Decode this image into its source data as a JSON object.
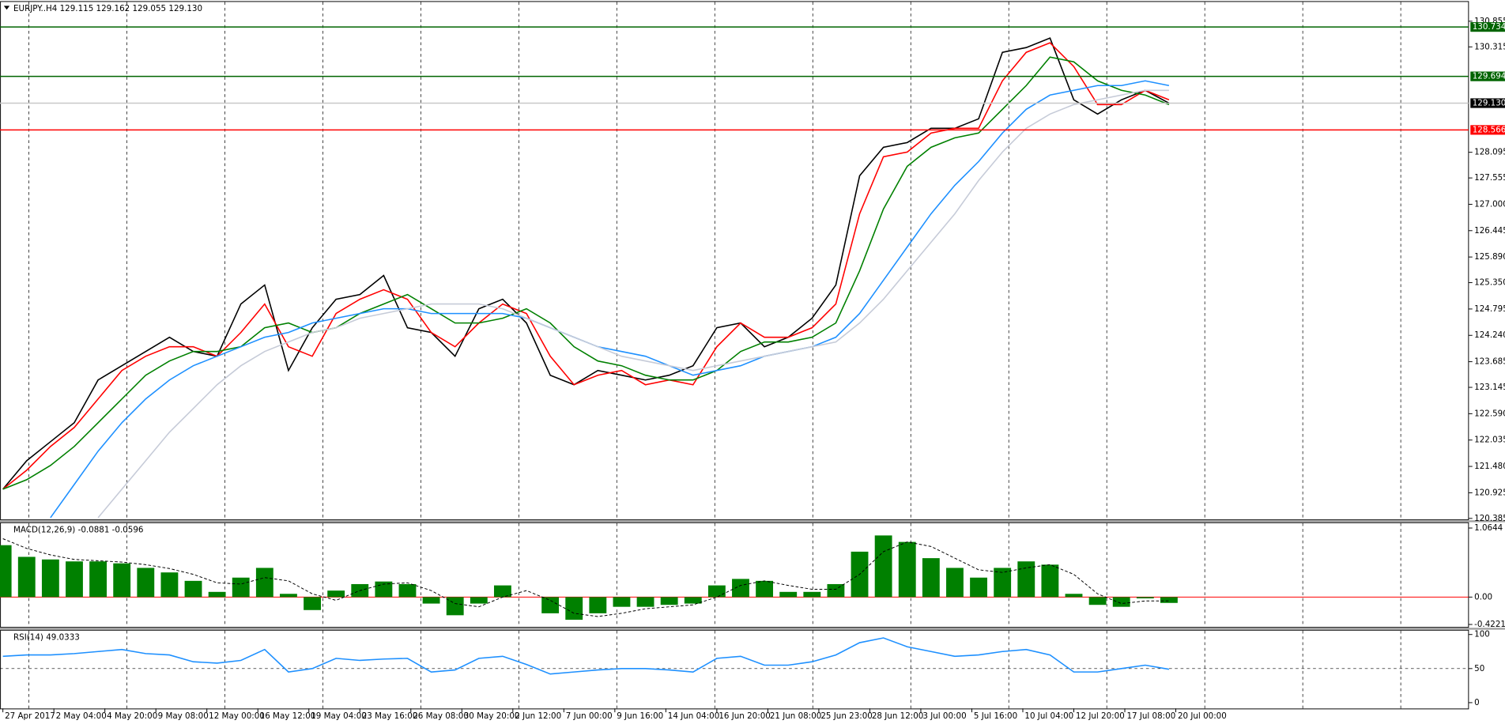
{
  "chart_data": [
    {
      "type": "line",
      "title": "EURJPY..H4  129.115 129.162 129.055 129.130",
      "x": [
        0,
        7,
        14,
        21,
        28,
        35,
        42,
        49,
        56,
        63,
        70,
        77,
        84,
        91,
        98,
        105,
        112,
        119,
        126,
        133,
        140,
        147,
        154,
        161,
        168,
        175,
        182,
        189,
        196,
        203,
        210,
        217,
        224,
        231,
        238,
        245,
        252,
        259,
        266,
        273,
        280,
        287,
        294,
        301,
        308,
        315,
        322,
        329,
        336,
        343
      ],
      "xlim": [
        -0.85,
        431.1
      ],
      "xticks": [
        {
          "value": 0,
          "label": "27 Apr 2017"
        },
        {
          "value": 15,
          "label": "2 May 04:00"
        },
        {
          "value": 30,
          "label": "4 May 20:00"
        },
        {
          "value": 45,
          "label": "9 May 08:00"
        },
        {
          "value": 60,
          "label": "12 May 00:00"
        },
        {
          "value": 75,
          "label": "16 May 12:00"
        },
        {
          "value": 90,
          "label": "19 May 04:00"
        },
        {
          "value": 105,
          "label": "23 May 16:00"
        },
        {
          "value": 120,
          "label": "26 May 08:00"
        },
        {
          "value": 135,
          "label": "30 May 20:00"
        },
        {
          "value": 150,
          "label": "2 Jun 12:00"
        },
        {
          "value": 165,
          "label": "7 Jun 00:00"
        },
        {
          "value": 180,
          "label": "9 Jun 16:00"
        },
        {
          "value": 195,
          "label": "14 Jun 04:00"
        },
        {
          "value": 210,
          "label": "16 Jun 20:00"
        },
        {
          "value": 225,
          "label": "21 Jun 08:00"
        },
        {
          "value": 240,
          "label": "25 Jun 23:00"
        },
        {
          "value": 255,
          "label": "28 Jun 12:00"
        },
        {
          "value": 270,
          "label": "3 Jul 00:00"
        },
        {
          "value": 285,
          "label": "5 Jul 16:00"
        },
        {
          "value": 300,
          "label": "10 Jul 04:00"
        },
        {
          "value": 315,
          "label": "12 Jul 20:00"
        },
        {
          "value": 330,
          "label": "17 Jul 08:00"
        },
        {
          "value": 345,
          "label": "20 Jul 00:00"
        }
      ],
      "ylim": [
        120.365,
        131.26
      ],
      "yticks": [
        130.855,
        130.315,
        128.095,
        127.555,
        {
          "value": 127,
          "label": "127.000"
        },
        126.445,
        {
          "value": 125.89,
          "label": "125.890"
        },
        {
          "value": 125.35,
          "label": "125.350"
        },
        124.795,
        {
          "value": 124.24,
          "label": "124.240"
        },
        123.685,
        123.145,
        {
          "value": 122.59,
          "label": "122.590"
        },
        122.035,
        {
          "value": 121.48,
          "label": "121.480"
        },
        120.925,
        120.385
      ],
      "series": [
        {
          "color": "#000000",
          "values": [
            121.0,
            121.6,
            122.0,
            122.4,
            123.3,
            123.6,
            123.9,
            124.2,
            123.9,
            123.8,
            124.9,
            125.3,
            123.5,
            124.4,
            125.0,
            125.1,
            125.5,
            124.4,
            124.3,
            123.8,
            124.8,
            125.0,
            124.5,
            123.4,
            123.2,
            123.5,
            123.4,
            123.3,
            123.4,
            123.6,
            124.4,
            124.5,
            124.0,
            124.2,
            124.6,
            125.3,
            127.6,
            128.2,
            128.3,
            128.6,
            128.6,
            128.8,
            130.2,
            130.3,
            130.5,
            129.2,
            128.9,
            129.2,
            129.4,
            129.13
          ]
        },
        {
          "color": "#ff0000",
          "values": [
            121.0,
            121.4,
            121.9,
            122.3,
            122.9,
            123.5,
            123.8,
            124.0,
            124.0,
            123.8,
            124.3,
            124.9,
            124.0,
            123.8,
            124.7,
            125.0,
            125.2,
            125.0,
            124.3,
            124.0,
            124.5,
            124.9,
            124.7,
            123.8,
            123.2,
            123.4,
            123.5,
            123.2,
            123.3,
            123.2,
            124.0,
            124.5,
            124.2,
            124.2,
            124.4,
            124.9,
            126.8,
            128.0,
            128.1,
            128.5,
            128.6,
            128.6,
            129.6,
            130.2,
            130.4,
            129.9,
            129.1,
            129.1,
            129.4,
            129.2
          ]
        },
        {
          "color": "#008000",
          "values": [
            121.0,
            121.2,
            121.5,
            121.9,
            122.4,
            122.9,
            123.4,
            123.7,
            123.9,
            123.9,
            124.0,
            124.4,
            124.5,
            124.3,
            124.4,
            124.7,
            124.9,
            125.1,
            124.8,
            124.5,
            124.5,
            124.6,
            124.8,
            124.5,
            124.0,
            123.7,
            123.6,
            123.4,
            123.3,
            123.3,
            123.5,
            123.9,
            124.1,
            124.1,
            124.2,
            124.5,
            125.6,
            126.9,
            127.8,
            128.2,
            128.4,
            128.5,
            129.0,
            129.5,
            130.1,
            130.0,
            129.6,
            129.4,
            129.3,
            129.1
          ]
        },
        {
          "color": "#1e90ff",
          "values": [
            null,
            null,
            120.4,
            121.1,
            121.8,
            122.4,
            122.9,
            123.3,
            123.6,
            123.8,
            124.0,
            124.2,
            124.3,
            124.5,
            124.6,
            124.7,
            124.8,
            124.8,
            124.7,
            124.7,
            124.7,
            124.7,
            124.6,
            124.4,
            124.2,
            124.0,
            123.9,
            123.8,
            123.6,
            123.4,
            123.5,
            123.6,
            123.8,
            123.9,
            124.0,
            124.2,
            124.7,
            125.4,
            126.1,
            126.8,
            127.4,
            127.9,
            128.5,
            129.0,
            129.3,
            129.4,
            129.5,
            129.5,
            129.6,
            129.5
          ]
        },
        {
          "color": "#c6cbd8",
          "values": [
            null,
            null,
            null,
            null,
            120.4,
            121.0,
            121.6,
            122.2,
            122.7,
            123.2,
            123.6,
            123.9,
            124.1,
            124.3,
            124.4,
            124.6,
            124.7,
            124.8,
            124.9,
            124.9,
            124.9,
            124.8,
            124.6,
            124.4,
            124.2,
            124.0,
            123.8,
            123.7,
            123.6,
            123.5,
            123.6,
            123.7,
            123.8,
            123.9,
            124.0,
            124.1,
            124.5,
            125.0,
            125.6,
            126.2,
            126.8,
            127.5,
            128.1,
            128.6,
            128.9,
            129.1,
            129.2,
            129.3,
            129.4,
            129.4
          ]
        }
      ],
      "levels": [
        {
          "value": 130.734,
          "color": "#006400"
        },
        {
          "value": 129.694,
          "color": "#006400"
        },
        {
          "value": 129.13,
          "label": "129.130",
          "color": "#000000",
          "line_color": "#c8c8c8"
        },
        {
          "value": 128.566,
          "color": "#ff0000"
        }
      ]
    },
    {
      "type": "macd",
      "title": "MACD(12,26,9) -0.0881 -0.0596",
      "x": [
        0,
        7,
        14,
        21,
        28,
        35,
        42,
        49,
        56,
        63,
        70,
        77,
        84,
        91,
        98,
        105,
        112,
        119,
        126,
        133,
        140,
        147,
        154,
        161,
        168,
        175,
        182,
        189,
        196,
        203,
        210,
        217,
        224,
        231,
        238,
        245,
        252,
        259,
        266,
        273,
        280,
        287,
        294,
        301,
        308,
        315,
        322,
        329,
        336,
        343
      ],
      "xlim": [
        -0.85,
        431.1
      ],
      "ylim": [
        -0.459,
        1.139
      ],
      "yticks": [
        1.0644,
        {
          "value": 0,
          "label": "0.00"
        },
        -0.4221
      ],
      "zero_line_color": "#ff0000",
      "series": [
        {
          "type": "bar",
          "color": "#008000",
          "values": [
            0.8,
            0.62,
            0.58,
            0.55,
            0.55,
            0.52,
            0.45,
            0.38,
            0.25,
            0.08,
            0.3,
            0.45,
            0.05,
            -0.2,
            0.1,
            0.2,
            0.24,
            0.2,
            -0.1,
            -0.28,
            -0.1,
            0.18,
            0.0,
            -0.25,
            -0.35,
            -0.25,
            -0.15,
            -0.15,
            -0.12,
            -0.1,
            0.18,
            0.28,
            0.25,
            0.08,
            0.08,
            0.2,
            0.7,
            0.95,
            0.85,
            0.6,
            0.45,
            0.3,
            0.45,
            0.55,
            0.5,
            0.05,
            -0.12,
            -0.15,
            -0.02,
            -0.09
          ]
        },
        {
          "type": "line",
          "color": "#000000",
          "dash": true,
          "values": [
            0.9,
            0.75,
            0.65,
            0.58,
            0.56,
            0.54,
            0.5,
            0.44,
            0.35,
            0.22,
            0.2,
            0.3,
            0.25,
            0.05,
            -0.05,
            0.1,
            0.2,
            0.22,
            0.1,
            -0.1,
            -0.15,
            0.0,
            0.1,
            -0.05,
            -0.25,
            -0.3,
            -0.25,
            -0.18,
            -0.15,
            -0.12,
            0.0,
            0.18,
            0.25,
            0.18,
            0.12,
            0.12,
            0.35,
            0.7,
            0.85,
            0.78,
            0.6,
            0.42,
            0.38,
            0.45,
            0.5,
            0.35,
            0.05,
            -0.1,
            -0.06,
            -0.06
          ]
        }
      ]
    },
    {
      "type": "line",
      "title": "RSI(14) 49.0333",
      "x": [
        0,
        7,
        14,
        21,
        28,
        35,
        42,
        49,
        56,
        63,
        70,
        77,
        84,
        91,
        98,
        105,
        112,
        119,
        126,
        133,
        140,
        147,
        154,
        161,
        168,
        175,
        182,
        189,
        196,
        203,
        210,
        217,
        224,
        231,
        238,
        245,
        252,
        259,
        266,
        273,
        280,
        287,
        294,
        301,
        308,
        315,
        322,
        329,
        336,
        343
      ],
      "xlim": [
        -0.85,
        431.1
      ],
      "ylim": [
        -8.5,
        105.6
      ],
      "yticks": [
        100,
        50,
        0
      ],
      "level_lines": [
        50
      ],
      "series": [
        {
          "color": "#1e90ff",
          "values": [
            68,
            70,
            70,
            72,
            75,
            78,
            72,
            70,
            60,
            58,
            62,
            78,
            45,
            50,
            65,
            62,
            64,
            65,
            45,
            48,
            65,
            68,
            56,
            42,
            45,
            48,
            50,
            50,
            48,
            45,
            65,
            68,
            55,
            55,
            60,
            70,
            88,
            95,
            82,
            75,
            68,
            70,
            75,
            78,
            70,
            45,
            45,
            50,
            55,
            49
          ]
        }
      ]
    }
  ]
}
